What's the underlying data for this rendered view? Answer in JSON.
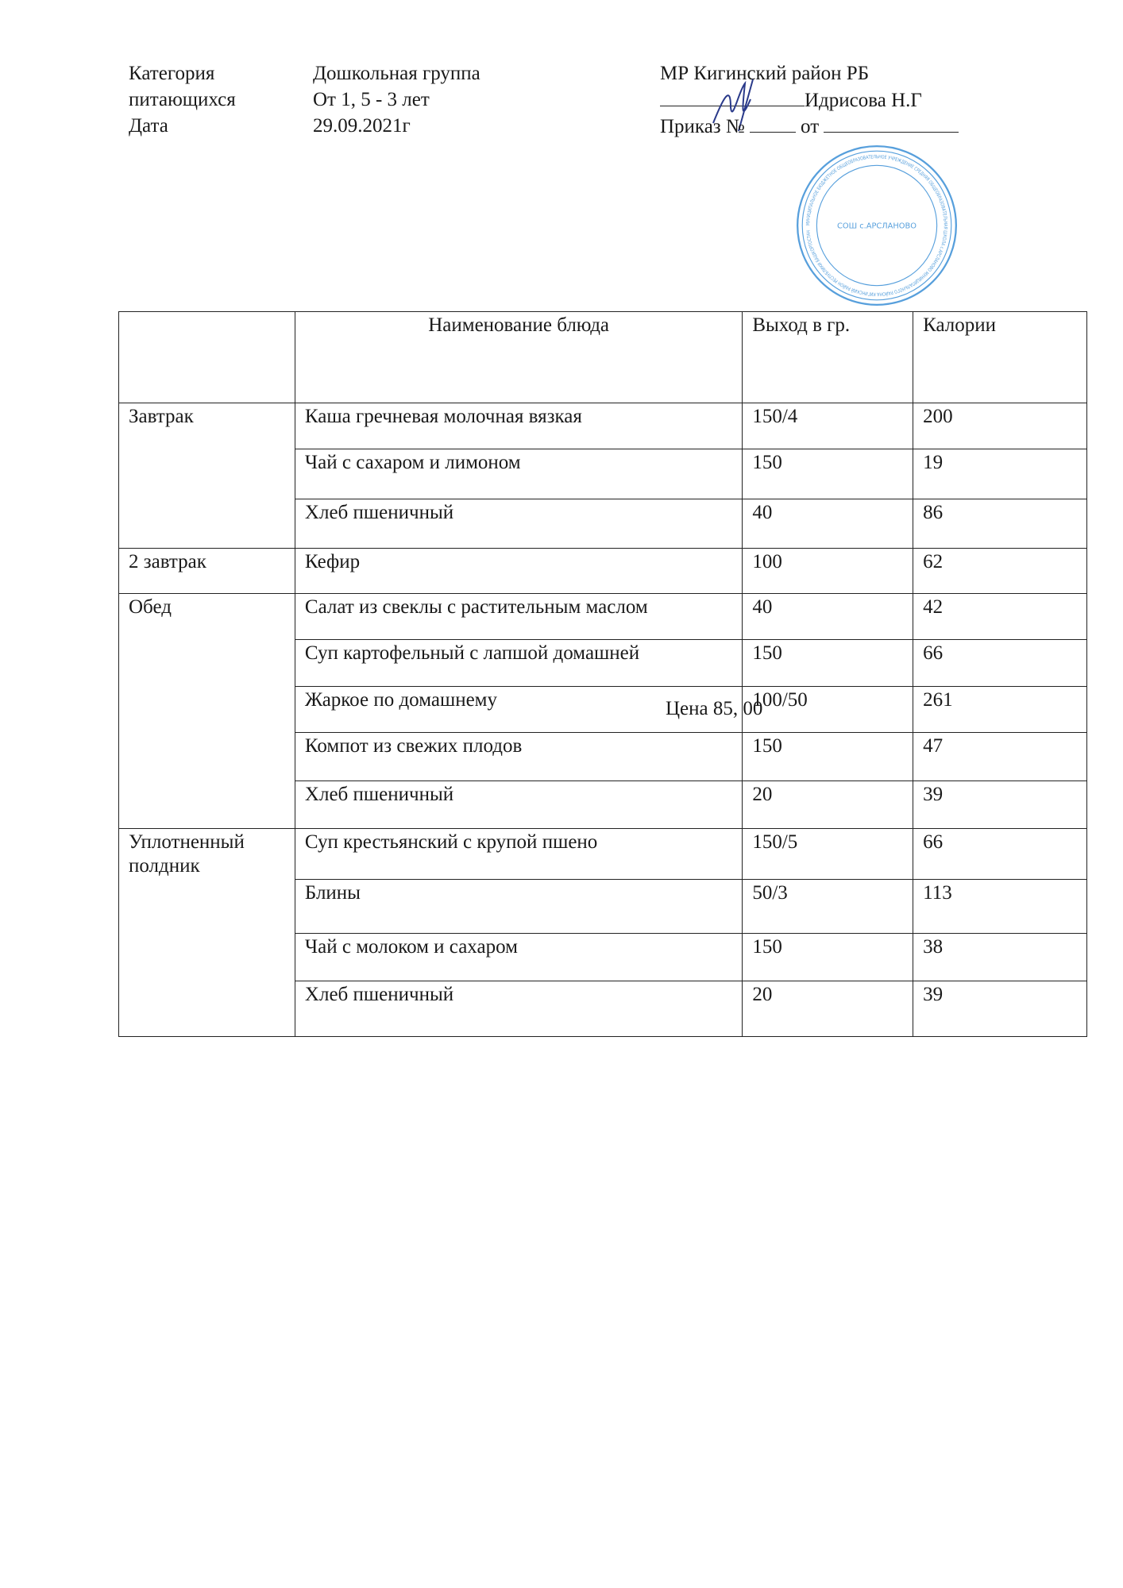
{
  "header": {
    "category_label_1": "Категория",
    "category_label_2": "питающихся",
    "date_label": "Дата",
    "group": "Дошкольная группа",
    "age": "От 1, 5 - 3 лет",
    "date": "29.09.2021г",
    "approval_org": "МР Кигинский район РБ",
    "approver": "Идрисова Н.Г",
    "order_label": "Приказ №",
    "order_from": "от"
  },
  "stamp": {
    "center_text": "СОШ с.АРСЛАНОВО",
    "ring_text": "МУНИЦИПАЛЬНОЕ БЮДЖЕТНОЕ ОБЩЕОБРАЗОВАТЕЛЬНОЕ УЧРЕЖДЕНИЕ СРЕДНЯЯ ОБЩЕОБРАЗОВАТЕЛЬНАЯ ШКОЛА с.АРСЛАНОВО МУНИЦИПАЛЬНОГО РАЙОНА КИГИНСКИЙ РАЙОН РЕСПУБЛИКИ БАШКОРТОСТАН",
    "color": "#3a8fd6"
  },
  "table": {
    "headers": [
      "",
      "Наименование блюда",
      "Выход в гр.",
      "Калории"
    ],
    "groups": [
      {
        "meal": "Завтрак",
        "rows": [
          [
            "Каша гречневая молочная вязкая",
            "150/4",
            "200"
          ],
          [
            "Чай с сахаром и лимоном",
            "150",
            "19"
          ],
          [
            "Хлеб пшеничный",
            "40",
            "86"
          ]
        ]
      },
      {
        "meal": "2 завтрак",
        "rows": [
          [
            "Кефир",
            "100",
            "62"
          ]
        ]
      },
      {
        "meal": "Обед",
        "rows": [
          [
            "Салат из свеклы с растительным  маслом",
            "40",
            "42"
          ],
          [
            "Суп картофельный с лапшой домашней",
            "150",
            "66"
          ],
          [
            "Жаркое по домашнему",
            "100/50",
            "261"
          ],
          [
            "Компот из свежих плодов",
            "150",
            "47"
          ],
          [
            "Хлеб пшеничный",
            "20",
            "39"
          ]
        ]
      },
      {
        "meal": "Уплотненный полдник",
        "rows": [
          [
            "Суп крестьянский с крупой пшено",
            "150/5",
            "66"
          ],
          [
            "Блины",
            "50/3",
            "113"
          ],
          [
            "Чай с молоком  и сахаром",
            "150",
            "38"
          ],
          [
            "Хлеб пшеничный",
            "20",
            "39"
          ]
        ]
      }
    ]
  },
  "price": "Цена  85, 00"
}
